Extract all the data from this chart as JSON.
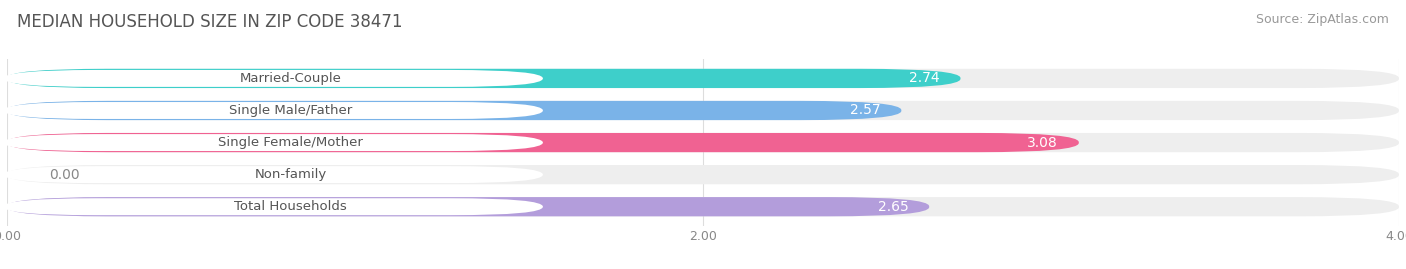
{
  "title": "MEDIAN HOUSEHOLD SIZE IN ZIP CODE 38471",
  "source": "Source: ZipAtlas.com",
  "categories": [
    "Married-Couple",
    "Single Male/Father",
    "Single Female/Mother",
    "Non-family",
    "Total Households"
  ],
  "values": [
    2.74,
    2.57,
    3.08,
    0.0,
    2.65
  ],
  "bar_colors": [
    "#3ecfca",
    "#7ab3e8",
    "#f06292",
    "#f5c99a",
    "#b39ddb"
  ],
  "xlim": [
    0,
    4.0
  ],
  "xtick_labels": [
    "0.00",
    "2.00",
    "4.00"
  ],
  "title_fontsize": 12,
  "source_fontsize": 9,
  "bar_label_fontsize": 10,
  "cat_label_fontsize": 9.5,
  "background_color": "#ffffff",
  "bar_bg_color": "#eeeeee"
}
